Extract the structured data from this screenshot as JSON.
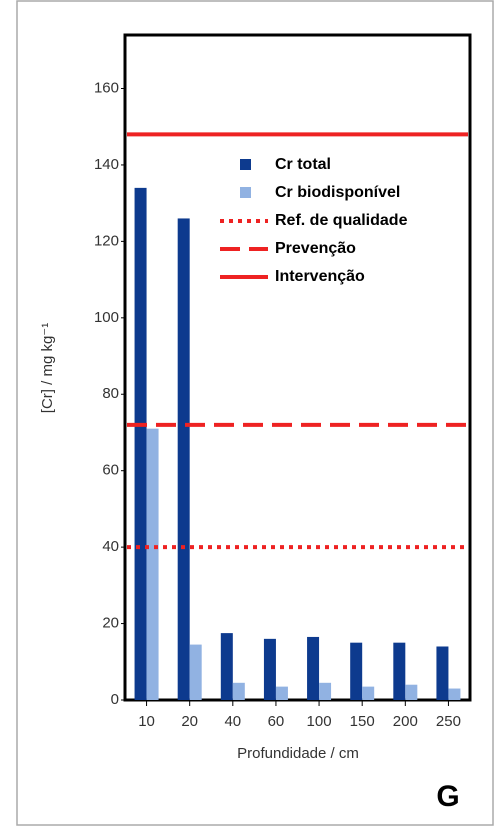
{
  "chart_data": {
    "type": "bar",
    "categories": [
      "10",
      "20",
      "40",
      "60",
      "100",
      "150",
      "200",
      "250"
    ],
    "series": [
      {
        "name": "Cr total",
        "color": "#0d3a8e",
        "values": [
          134,
          126,
          17.5,
          16,
          16.5,
          15,
          15,
          14
        ]
      },
      {
        "name": "Cr biodisponível",
        "color": "#91b2e2",
        "values": [
          71,
          14.5,
          4.5,
          3.5,
          4.5,
          3.5,
          4,
          3
        ]
      }
    ],
    "reference_lines": [
      {
        "name": "Ref. de qualidade",
        "value": 40,
        "style": "dotted",
        "color": "#ee2222"
      },
      {
        "name": "Prevenção",
        "value": 72,
        "style": "dashed",
        "color": "#ee2222"
      },
      {
        "name": "Intervenção",
        "value": 148,
        "style": "solid",
        "color": "#ee2222"
      }
    ],
    "ylim": [
      0,
      174
    ],
    "yticks": [
      0,
      20,
      40,
      60,
      80,
      100,
      120,
      140,
      160
    ],
    "y_label": "[Cr] / mg kg⁻¹",
    "x_label": "Profundidade / cm",
    "panel_label": "G"
  }
}
